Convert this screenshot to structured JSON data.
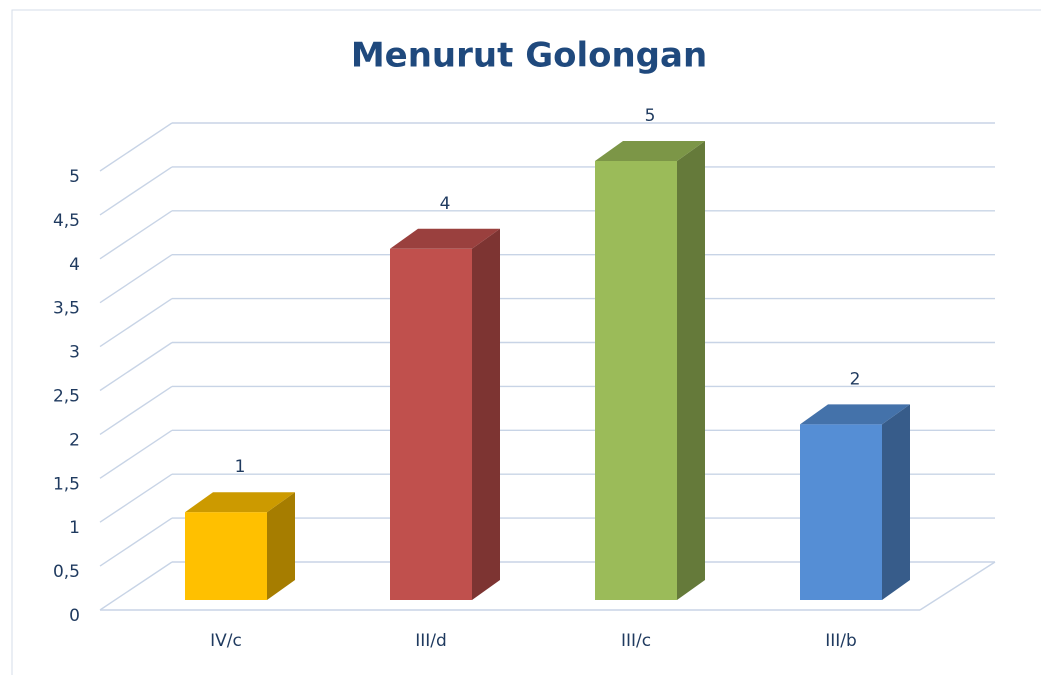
{
  "chart_data": {
    "type": "bar3d",
    "title": "Menurut Golongan",
    "categories": [
      "IV/c",
      "III/d",
      "III/c",
      "III/b"
    ],
    "values": [
      1,
      4,
      5,
      2
    ],
    "colors": [
      "#ffc000",
      "#c0504d",
      "#9bbb59",
      "#558ed5"
    ],
    "ylim": [
      0,
      5
    ],
    "yticks": [
      0,
      {
        "value": 0.5,
        "label": "0,5"
      },
      1,
      {
        "value": 1.5,
        "label": "1,5"
      },
      2,
      {
        "value": 2.5,
        "label": "2,5"
      },
      3,
      {
        "value": 3.5,
        "label": "3,5"
      },
      4,
      {
        "value": 4.5,
        "label": "4,5"
      },
      5
    ],
    "grid": true
  }
}
